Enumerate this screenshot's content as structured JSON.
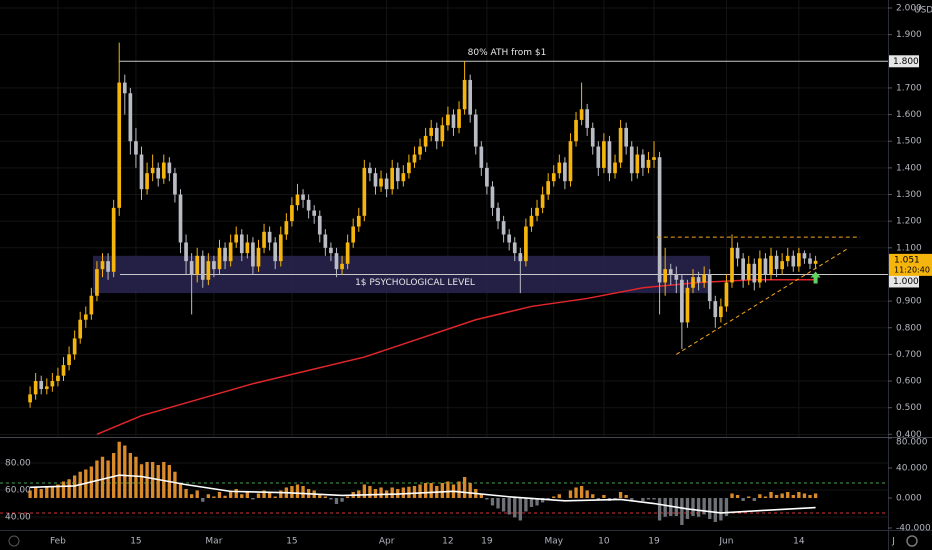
{
  "chart_data": [
    {
      "type": "candlestick",
      "currency": "USD",
      "countdown": "11:20:40",
      "up_color": "#f5b50c",
      "down_color": "#b9bcc4",
      "ma_color": "#e0262b",
      "xlim": [
        -5.4,
        154
      ],
      "xticks": [
        {
          "value": 5,
          "label": "Feb"
        },
        {
          "value": 19,
          "label": "15"
        },
        {
          "value": 33,
          "label": "Mar"
        },
        {
          "value": 47,
          "label": "15"
        },
        {
          "value": 64,
          "label": "Apr"
        },
        {
          "value": 75,
          "label": "12"
        },
        {
          "value": 82,
          "label": "19"
        },
        {
          "value": 94,
          "label": "May"
        },
        {
          "value": 103,
          "label": "10"
        },
        {
          "value": 112,
          "label": "19"
        },
        {
          "value": 125,
          "label": "Jun"
        },
        {
          "value": 138,
          "label": "14"
        },
        {
          "value": 155,
          "label": "J"
        }
      ],
      "ylim": [
        0.39,
        2.03
      ],
      "yticks": [
        {
          "value": 0.4,
          "label": "0.400"
        },
        {
          "value": 0.5,
          "label": "0.500"
        },
        {
          "value": 0.6,
          "label": "0.600"
        },
        {
          "value": 0.7,
          "label": "0.700"
        },
        {
          "value": 0.8,
          "label": "0.800"
        },
        {
          "value": 0.9,
          "label": "0.900"
        },
        {
          "value": 1.1,
          "label": "1.100"
        },
        {
          "value": 1.2,
          "label": "1.200"
        },
        {
          "value": 1.3,
          "label": "1.300"
        },
        {
          "value": 1.4,
          "label": "1.400"
        },
        {
          "value": 1.5,
          "label": "1.500"
        },
        {
          "value": 1.6,
          "label": "1.600"
        },
        {
          "value": 1.7,
          "label": "1.700"
        },
        {
          "value": 1.9,
          "label": "1.900"
        },
        {
          "value": 2.0,
          "label": "2.000"
        }
      ],
      "candles": {
        "open": [
          0.52,
          0.55,
          0.6,
          0.57,
          0.58,
          0.6,
          0.62,
          0.66,
          0.7,
          0.76,
          0.83,
          0.85,
          0.92,
          1.02,
          1.05,
          1.01,
          1.25,
          1.72,
          1.68,
          1.5,
          1.45,
          1.32,
          1.38,
          1.4,
          1.36,
          1.42,
          1.38,
          1.3,
          1.12,
          1.05,
          1.0,
          1.07,
          0.98,
          1.05,
          1.02,
          1.1,
          1.05,
          1.12,
          1.15,
          1.08,
          1.12,
          1.03,
          1.1,
          1.16,
          1.12,
          1.05,
          1.15,
          1.2,
          1.26,
          1.3,
          1.28,
          1.24,
          1.22,
          1.15,
          1.1,
          1.08,
          1.02,
          1.04,
          1.12,
          1.18,
          1.22,
          1.4,
          1.38,
          1.33,
          1.36,
          1.32,
          1.4,
          1.35,
          1.38,
          1.42,
          1.45,
          1.48,
          1.52,
          1.55,
          1.5,
          1.56,
          1.6,
          1.55,
          1.62,
          1.73,
          1.6,
          1.48,
          1.4,
          1.33,
          1.25,
          1.2,
          1.15,
          1.12,
          1.08,
          1.05,
          1.18,
          1.22,
          1.25,
          1.3,
          1.35,
          1.38,
          1.42,
          1.35,
          1.5,
          1.58,
          1.62,
          1.55,
          1.48,
          1.4,
          1.5,
          1.38,
          1.42,
          1.55,
          1.48,
          1.38,
          1.45,
          1.4,
          1.43,
          1.44,
          0.97,
          1.02,
          1.0,
          0.98,
          0.82,
          0.95,
          0.99,
          0.97,
          1.0,
          0.9,
          0.84,
          0.88,
          0.97,
          1.1,
          1.06,
          0.98,
          1.04,
          0.97,
          1.06,
          1.0,
          1.07,
          1.02,
          1.05,
          1.07,
          1.03,
          1.08,
          1.06,
          1.04
        ],
        "high": [
          0.58,
          0.63,
          0.62,
          0.61,
          0.63,
          0.65,
          0.69,
          0.73,
          0.79,
          0.86,
          0.88,
          0.95,
          1.05,
          1.08,
          1.08,
          1.28,
          1.87,
          1.75,
          1.7,
          1.55,
          1.48,
          1.42,
          1.45,
          1.42,
          1.45,
          1.44,
          1.4,
          1.32,
          1.15,
          1.08,
          1.1,
          1.09,
          1.08,
          1.07,
          1.13,
          1.12,
          1.15,
          1.18,
          1.17,
          1.15,
          1.14,
          1.13,
          1.19,
          1.18,
          1.14,
          1.18,
          1.23,
          1.29,
          1.34,
          1.32,
          1.3,
          1.26,
          1.24,
          1.17,
          1.12,
          1.1,
          1.07,
          1.15,
          1.21,
          1.25,
          1.43,
          1.42,
          1.4,
          1.39,
          1.38,
          1.43,
          1.42,
          1.41,
          1.45,
          1.48,
          1.51,
          1.55,
          1.58,
          1.57,
          1.59,
          1.63,
          1.62,
          1.65,
          1.8,
          1.75,
          1.62,
          1.5,
          1.42,
          1.35,
          1.27,
          1.22,
          1.17,
          1.14,
          1.1,
          1.21,
          1.25,
          1.28,
          1.33,
          1.38,
          1.41,
          1.45,
          1.44,
          1.53,
          1.61,
          1.72,
          1.64,
          1.57,
          1.5,
          1.53,
          1.52,
          1.45,
          1.58,
          1.57,
          1.5,
          1.48,
          1.47,
          1.46,
          1.5,
          1.46,
          1.1,
          1.04,
          1.03,
          1.0,
          0.98,
          1.02,
          1.01,
          1.03,
          1.02,
          0.92,
          0.91,
          1.0,
          1.15,
          1.12,
          1.08,
          1.07,
          1.06,
          1.09,
          1.08,
          1.1,
          1.09,
          1.08,
          1.1,
          1.09,
          1.1,
          1.09,
          1.08,
          1.07
        ],
        "low": [
          0.5,
          0.53,
          0.55,
          0.55,
          0.56,
          0.58,
          0.6,
          0.64,
          0.68,
          0.74,
          0.8,
          0.83,
          0.9,
          0.99,
          0.98,
          0.99,
          1.22,
          1.6,
          1.45,
          1.4,
          1.28,
          1.3,
          1.35,
          1.33,
          1.34,
          1.35,
          1.27,
          1.08,
          1.0,
          0.85,
          0.97,
          0.95,
          0.96,
          0.99,
          1.0,
          1.02,
          1.03,
          1.1,
          1.05,
          1.06,
          1.0,
          1.01,
          1.08,
          1.09,
          1.02,
          1.03,
          1.13,
          1.18,
          1.24,
          1.25,
          1.21,
          1.19,
          1.12,
          1.07,
          1.05,
          0.99,
          1.0,
          1.02,
          1.1,
          1.16,
          1.2,
          1.35,
          1.3,
          1.31,
          1.29,
          1.3,
          1.32,
          1.33,
          1.36,
          1.4,
          1.43,
          1.46,
          1.5,
          1.47,
          1.48,
          1.54,
          1.52,
          1.53,
          1.6,
          1.57,
          1.45,
          1.37,
          1.3,
          1.22,
          1.17,
          1.12,
          1.09,
          1.05,
          0.93,
          1.03,
          1.16,
          1.2,
          1.23,
          1.28,
          1.33,
          1.36,
          1.32,
          1.33,
          1.48,
          1.56,
          1.52,
          1.45,
          1.37,
          1.38,
          1.35,
          1.36,
          1.4,
          1.45,
          1.35,
          1.36,
          1.37,
          1.38,
          1.4,
          0.85,
          0.92,
          0.96,
          0.93,
          0.72,
          0.8,
          0.93,
          0.94,
          0.95,
          0.87,
          0.8,
          0.82,
          0.86,
          0.95,
          1.03,
          0.95,
          0.96,
          0.94,
          0.95,
          0.97,
          0.98,
          0.99,
          1.0,
          1.03,
          1.01,
          1.01,
          1.04,
          1.02,
          1.02
        ],
        "close": [
          0.55,
          0.6,
          0.57,
          0.58,
          0.6,
          0.62,
          0.66,
          0.7,
          0.76,
          0.83,
          0.85,
          0.92,
          1.02,
          1.05,
          1.01,
          1.25,
          1.72,
          1.68,
          1.5,
          1.45,
          1.32,
          1.38,
          1.4,
          1.36,
          1.42,
          1.38,
          1.3,
          1.12,
          1.05,
          1.0,
          1.07,
          0.98,
          1.05,
          1.02,
          1.1,
          1.05,
          1.12,
          1.15,
          1.08,
          1.12,
          1.03,
          1.1,
          1.16,
          1.12,
          1.05,
          1.15,
          1.2,
          1.26,
          1.3,
          1.28,
          1.24,
          1.22,
          1.15,
          1.1,
          1.08,
          1.02,
          1.04,
          1.12,
          1.18,
          1.22,
          1.4,
          1.38,
          1.33,
          1.36,
          1.32,
          1.4,
          1.35,
          1.38,
          1.42,
          1.45,
          1.48,
          1.52,
          1.55,
          1.5,
          1.56,
          1.6,
          1.55,
          1.62,
          1.73,
          1.6,
          1.48,
          1.4,
          1.33,
          1.25,
          1.2,
          1.15,
          1.12,
          1.08,
          1.05,
          1.18,
          1.22,
          1.25,
          1.3,
          1.35,
          1.38,
          1.42,
          1.35,
          1.5,
          1.58,
          1.62,
          1.55,
          1.48,
          1.4,
          1.5,
          1.38,
          1.42,
          1.55,
          1.48,
          1.38,
          1.45,
          1.4,
          1.43,
          1.44,
          0.97,
          1.02,
          1.0,
          0.98,
          0.82,
          0.95,
          0.99,
          0.97,
          1.0,
          0.9,
          0.84,
          0.88,
          0.97,
          1.1,
          1.06,
          0.98,
          1.04,
          0.97,
          1.06,
          1.0,
          1.07,
          1.02,
          1.05,
          1.07,
          1.03,
          1.08,
          1.06,
          1.04,
          1.051
        ]
      },
      "ma": {
        "x": [
          12,
          20,
          30,
          40,
          50,
          60,
          70,
          80,
          90,
          100,
          110,
          120,
          130,
          141
        ],
        "values": [
          0.4,
          0.47,
          0.53,
          0.59,
          0.64,
          0.69,
          0.76,
          0.83,
          0.88,
          0.91,
          0.95,
          0.97,
          0.98,
          0.98
        ]
      },
      "levels": [
        {
          "value": 1.8,
          "label": "1.800",
          "text": "80% ATH from $1"
        },
        {
          "value": 1.0,
          "label": "1.000",
          "text": "1$ PSYCHOLOGICAL LEVEL"
        }
      ],
      "zone": [
        0.93,
        1.07
      ],
      "trendlines": [
        {
          "x": [
            112.5,
            149
          ],
          "values": [
            1.14,
            1.14
          ]
        },
        {
          "x": [
            116,
            147
          ],
          "values": [
            0.7,
            1.1
          ]
        }
      ],
      "trend_color": "#f5a623"
    },
    {
      "type": "indicator",
      "ylim": [
        30.4,
        98.5
      ],
      "yticks": [
        {
          "value": 80,
          "label": "80.00"
        },
        {
          "value": 60,
          "label": "60.00"
        },
        {
          "value": 40,
          "label": "40.00"
        }
      ],
      "y2lim": [
        -42.7,
        80
      ],
      "y2ticks": [
        {
          "value": 80,
          "label": "80.000"
        },
        {
          "value": 40,
          "label": "40.000"
        },
        {
          "value": 0,
          "label": "0.000"
        },
        {
          "value": -40,
          "label": "-40.000"
        }
      ],
      "histogram": {
        "axis": "y2",
        "up_color": "#d98a2b",
        "down_color": "#6f7178",
        "values": [
          10,
          15,
          12,
          14,
          16,
          18,
          22,
          25,
          30,
          35,
          38,
          42,
          50,
          55,
          50,
          60,
          75,
          70,
          60,
          55,
          45,
          48,
          48,
          44,
          48,
          44,
          35,
          20,
          12,
          5,
          10,
          -5,
          5,
          2,
          8,
          3,
          10,
          12,
          5,
          8,
          -2,
          6,
          10,
          8,
          2,
          10,
          14,
          16,
          18,
          16,
          12,
          10,
          5,
          2,
          -2,
          -8,
          -5,
          2,
          8,
          10,
          18,
          16,
          12,
          14,
          10,
          14,
          12,
          14,
          15,
          16,
          18,
          20,
          20,
          16,
          20,
          22,
          18,
          22,
          28,
          20,
          12,
          5,
          -2,
          -10,
          -14,
          -18,
          -22,
          -26,
          -30,
          -18,
          -12,
          -10,
          -6,
          -2,
          2,
          5,
          0,
          10,
          14,
          16,
          10,
          5,
          -2,
          4,
          -4,
          -2,
          8,
          4,
          -4,
          0,
          -4,
          -2,
          -2,
          -30,
          -25,
          -24,
          -24,
          -36,
          -28,
          -24,
          -25,
          -22,
          -28,
          -32,
          -30,
          -24,
          6,
          4,
          -4,
          2,
          -4,
          5,
          2,
          8,
          4,
          6,
          8,
          4,
          8,
          6,
          4,
          6
        ]
      },
      "line": {
        "color": "#ffffff",
        "x": [
          0,
          8,
          16,
          20,
          28,
          36,
          46,
          56,
          66,
          76,
          86,
          96,
          106,
          112,
          118,
          124,
          132,
          141
        ],
        "values": [
          62,
          63,
          71,
          70,
          64,
          59,
          58,
          56,
          57,
          59,
          55,
          52,
          53,
          50,
          46,
          43,
          45,
          47
        ]
      },
      "levels": [
        {
          "value": 20,
          "color": "#3fa34d"
        },
        {
          "value": -20,
          "color": "#d32f2f"
        }
      ]
    }
  ]
}
